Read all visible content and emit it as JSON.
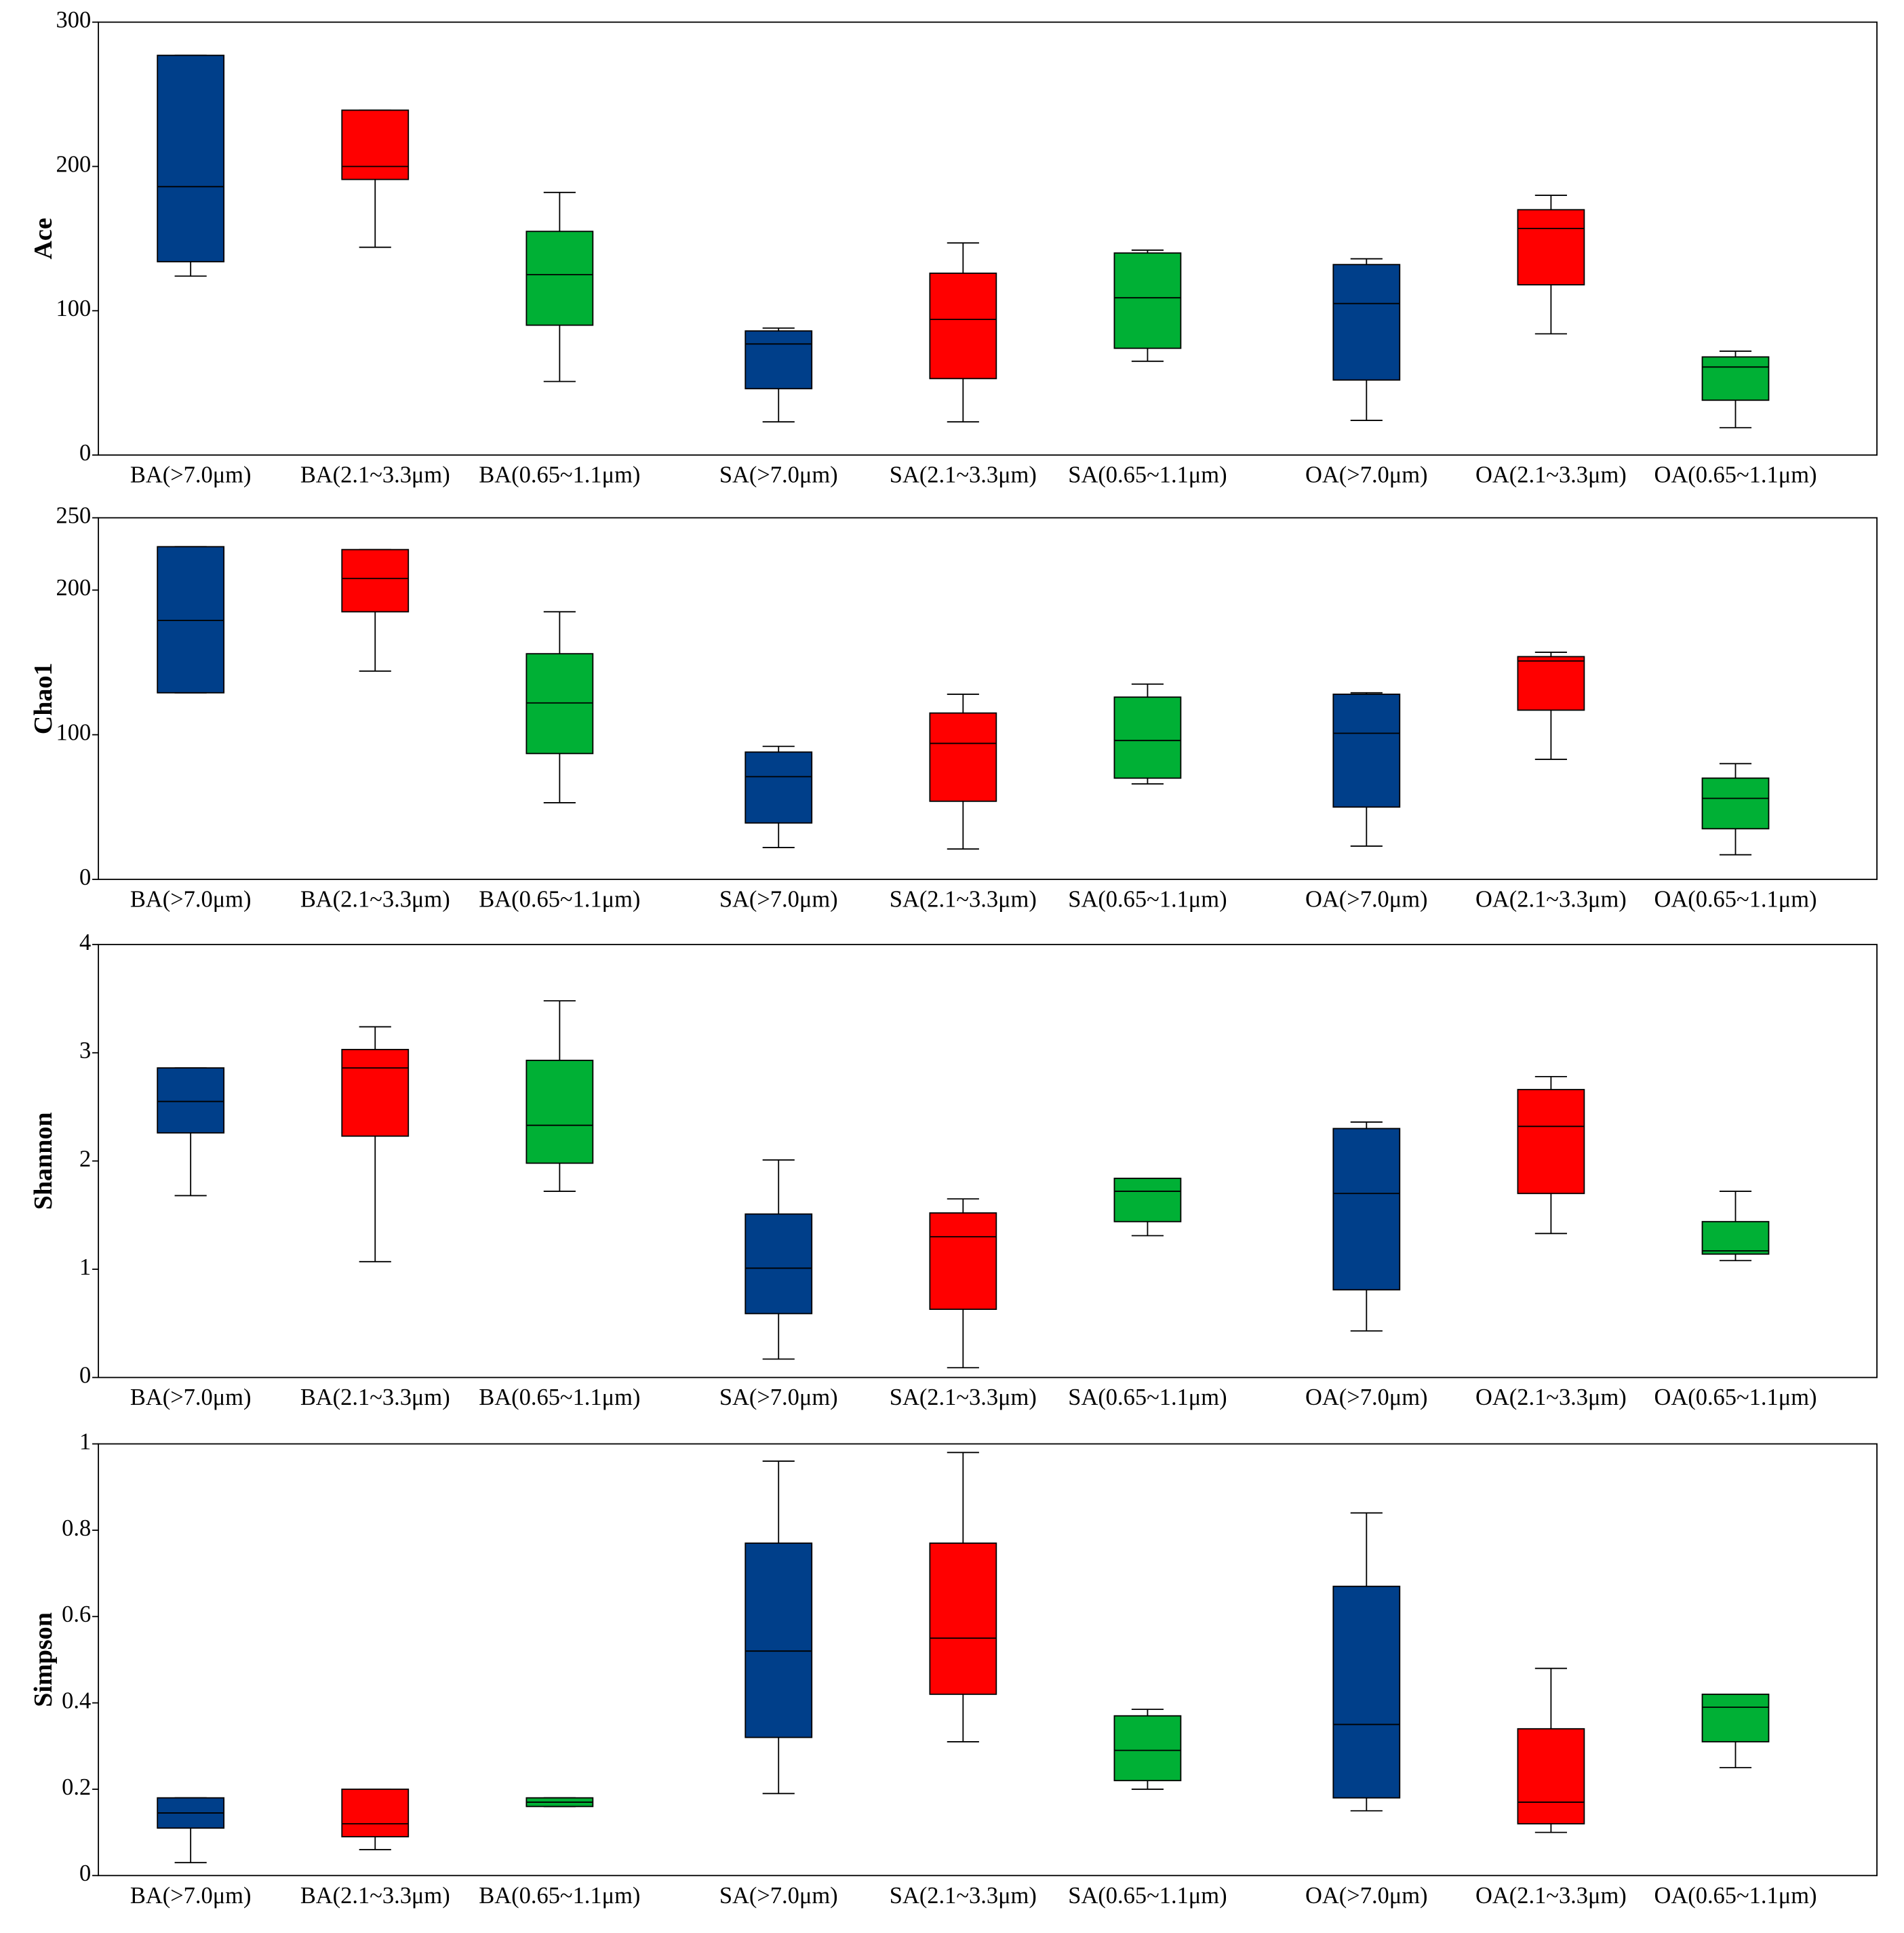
{
  "chart_data": [
    {
      "type": "box",
      "ylabel": "Ace",
      "categories": [
        "BA(>7.0μm)",
        "BA(2.1~3.3μm)",
        "BA(0.65~1.1μm)",
        "SA(>7.0μm)",
        "SA(2.1~3.3μm)",
        "SA(0.65~1.1μm)",
        "OA(>7.0μm)",
        "OA(2.1~3.3μm)",
        "OA(0.65~1.1μm)"
      ],
      "colors": [
        "#003f8a",
        "#ff0000",
        "#00b035",
        "#003f8a",
        "#ff0000",
        "#00b035",
        "#003f8a",
        "#ff0000",
        "#00b035"
      ],
      "whisker_low": [
        124,
        144,
        51,
        23,
        23,
        65,
        24,
        84,
        19
      ],
      "q1": [
        134,
        191,
        90,
        46,
        53,
        74,
        52,
        118,
        38
      ],
      "median": [
        186,
        200,
        125,
        77,
        94,
        109,
        105,
        157,
        61
      ],
      "q3": [
        277,
        239,
        155,
        86,
        126,
        140,
        132,
        170,
        68
      ],
      "whisker_high": [
        277,
        239,
        182,
        88,
        147,
        142,
        136,
        180,
        72
      ],
      "ylim": [
        0,
        300
      ],
      "yticks": [
        0,
        100,
        200,
        300
      ]
    },
    {
      "type": "box",
      "ylabel": "Chao1",
      "categories": [
        "BA(>7.0μm)",
        "BA(2.1~3.3μm)",
        "BA(0.65~1.1μm)",
        "SA(>7.0μm)",
        "SA(2.1~3.3μm)",
        "SA(0.65~1.1μm)",
        "OA(>7.0μm)",
        "OA(2.1~3.3μm)",
        "OA(0.65~1.1μm)"
      ],
      "colors": [
        "#003f8a",
        "#ff0000",
        "#00b035",
        "#003f8a",
        "#ff0000",
        "#00b035",
        "#003f8a",
        "#ff0000",
        "#00b035"
      ],
      "whisker_low": [
        129,
        144,
        53,
        22,
        21,
        66,
        23,
        83,
        17
      ],
      "q1": [
        129,
        185,
        87,
        39,
        54,
        70,
        50,
        117,
        35
      ],
      "median": [
        179,
        208,
        122,
        71,
        94,
        96,
        101,
        151,
        56
      ],
      "q3": [
        230,
        228,
        156,
        88,
        115,
        126,
        128,
        154,
        70
      ],
      "whisker_high": [
        230,
        228,
        185,
        92,
        128,
        135,
        129,
        157,
        80
      ],
      "ylim": [
        0,
        250
      ],
      "yticks": [
        0,
        100,
        200,
        250
      ]
    },
    {
      "type": "box",
      "ylabel": "Shannon",
      "categories": [
        "BA(>7.0μm)",
        "BA(2.1~3.3μm)",
        "BA(0.65~1.1μm)",
        "SA(>7.0μm)",
        "SA(2.1~3.3μm)",
        "SA(0.65~1.1μm)",
        "OA(>7.0μm)",
        "OA(2.1~3.3μm)",
        "OA(0.65~1.1μm)"
      ],
      "colors": [
        "#003f8a",
        "#ff0000",
        "#00b035",
        "#003f8a",
        "#ff0000",
        "#00b035",
        "#003f8a",
        "#ff0000",
        "#00b035"
      ],
      "whisker_low": [
        1.68,
        1.07,
        1.72,
        0.17,
        0.09,
        1.31,
        0.43,
        1.33,
        1.08
      ],
      "q1": [
        2.26,
        2.23,
        1.98,
        0.59,
        0.63,
        1.44,
        0.81,
        1.7,
        1.14
      ],
      "median": [
        2.55,
        2.86,
        2.33,
        1.01,
        1.3,
        1.72,
        1.7,
        2.32,
        1.17
      ],
      "q3": [
        2.86,
        3.03,
        2.93,
        1.51,
        1.52,
        1.84,
        2.3,
        2.66,
        1.44
      ],
      "whisker_high": [
        2.86,
        3.24,
        3.48,
        2.01,
        1.65,
        1.84,
        2.36,
        2.78,
        1.72
      ],
      "ylim": [
        0,
        4
      ],
      "yticks": [
        0,
        1,
        2,
        3,
        4
      ]
    },
    {
      "type": "box",
      "ylabel": "Simpson",
      "categories": [
        "BA(>7.0μm)",
        "BA(2.1~3.3μm)",
        "BA(0.65~1.1μm)",
        "SA(>7.0μm)",
        "SA(2.1~3.3μm)",
        "SA(0.65~1.1μm)",
        "OA(>7.0μm)",
        "OA(2.1~3.3μm)",
        "OA(0.65~1.1μm)"
      ],
      "colors": [
        "#003f8a",
        "#ff0000",
        "#00b035",
        "#003f8a",
        "#ff0000",
        "#00b035",
        "#003f8a",
        "#ff0000",
        "#00b035"
      ],
      "whisker_low": [
        0.03,
        0.06,
        0.16,
        0.19,
        0.31,
        0.2,
        0.15,
        0.1,
        0.25
      ],
      "q1": [
        0.11,
        0.09,
        0.16,
        0.32,
        0.42,
        0.22,
        0.18,
        0.12,
        0.31
      ],
      "median": [
        0.145,
        0.12,
        0.17,
        0.52,
        0.55,
        0.29,
        0.35,
        0.17,
        0.39
      ],
      "q3": [
        0.18,
        0.2,
        0.18,
        0.77,
        0.77,
        0.37,
        0.67,
        0.34,
        0.42
      ],
      "whisker_high": [
        0.18,
        0.2,
        0.18,
        0.96,
        0.98,
        0.385,
        0.84,
        0.48,
        0.42
      ],
      "ylim": [
        0,
        1
      ],
      "yticks": [
        0,
        0.2,
        0.4,
        0.6,
        0.8,
        1
      ]
    }
  ]
}
